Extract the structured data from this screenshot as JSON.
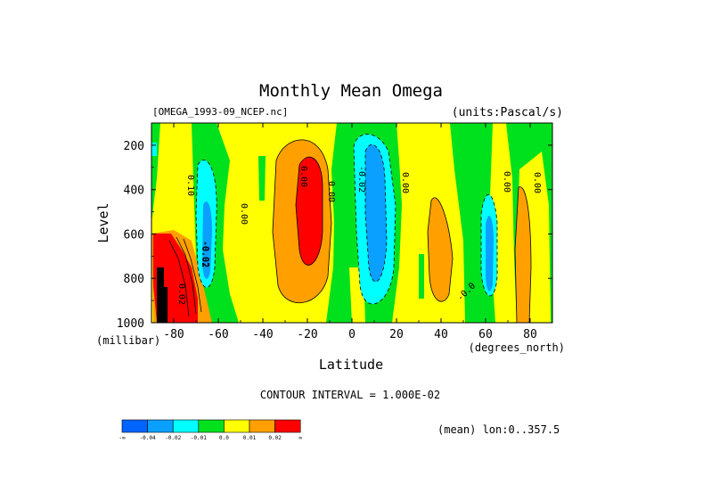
{
  "chart_data": {
    "type": "heatmap",
    "title": "Monthly Mean Omega",
    "subtitle_left": "[OMEGA_1993-09_NCEP.nc]",
    "subtitle_right": "(units:Pascal/s)",
    "xlabel": "Latitude",
    "x_unit_label": "(degrees_north)",
    "ylabel": "Level",
    "y_unit_label": "(millibar)",
    "xlim": [
      -90,
      90
    ],
    "ylim": [
      1000,
      100
    ],
    "x_ticks": [
      -80,
      -60,
      -40,
      -20,
      0,
      20,
      40,
      60,
      80
    ],
    "y_ticks": [
      200,
      400,
      600,
      800,
      1000
    ],
    "contour_interval_text": "CONTOUR INTERVAL = 1.000E-02",
    "info_text": "(mean) lon:0..357.5",
    "contour_labels": [
      "0.10",
      "0.02",
      "0.00",
      "0.00",
      "-0.02",
      "0.00",
      "0.00",
      "0.00",
      "0.00",
      "-0.02",
      "-0.0",
      "-0.02"
    ],
    "colorbar": {
      "colors": [
        "#0064ff",
        "#0aa0ff",
        "#00ffff",
        "#00e11e",
        "#ffff00",
        "#ffa000",
        "#ff0000"
      ],
      "labels": [
        "-∞",
        "-0.04",
        "-0.02",
        "-0.01",
        "0.0",
        "0.01",
        "0.02",
        "∞"
      ]
    },
    "levels": [
      "<-0.04",
      "-0.04..-0.02",
      "-0.02..-0.01",
      "-0.01..0.0",
      "0.0..0.01",
      "0.01..0.02",
      ">0.02"
    ],
    "features": [
      {
        "name": "strong_sinking_antarctic",
        "lat": -80,
        "level_range": [
          650,
          1000
        ],
        "value": 0.04
      },
      {
        "name": "ascent_southern_midlat",
        "lat": -62,
        "level_range": [
          250,
          900
        ],
        "value": -0.03
      },
      {
        "name": "sinking_southern_subtropics",
        "lat": -20,
        "level_range": [
          150,
          850
        ],
        "value": 0.03
      },
      {
        "name": "ascent_itcz",
        "lat": 10,
        "level_range": [
          150,
          950
        ],
        "value": -0.04
      },
      {
        "name": "sinking_northern_subtropics",
        "lat": 42,
        "level_range": [
          350,
          850
        ],
        "value": 0.015
      },
      {
        "name": "ascent_northern_midlat",
        "lat": 62,
        "level_range": [
          350,
          850
        ],
        "value": -0.025
      },
      {
        "name": "sinking_arctic",
        "lat": 82,
        "level_range": [
          300,
          1000
        ],
        "value": 0.015
      }
    ]
  }
}
